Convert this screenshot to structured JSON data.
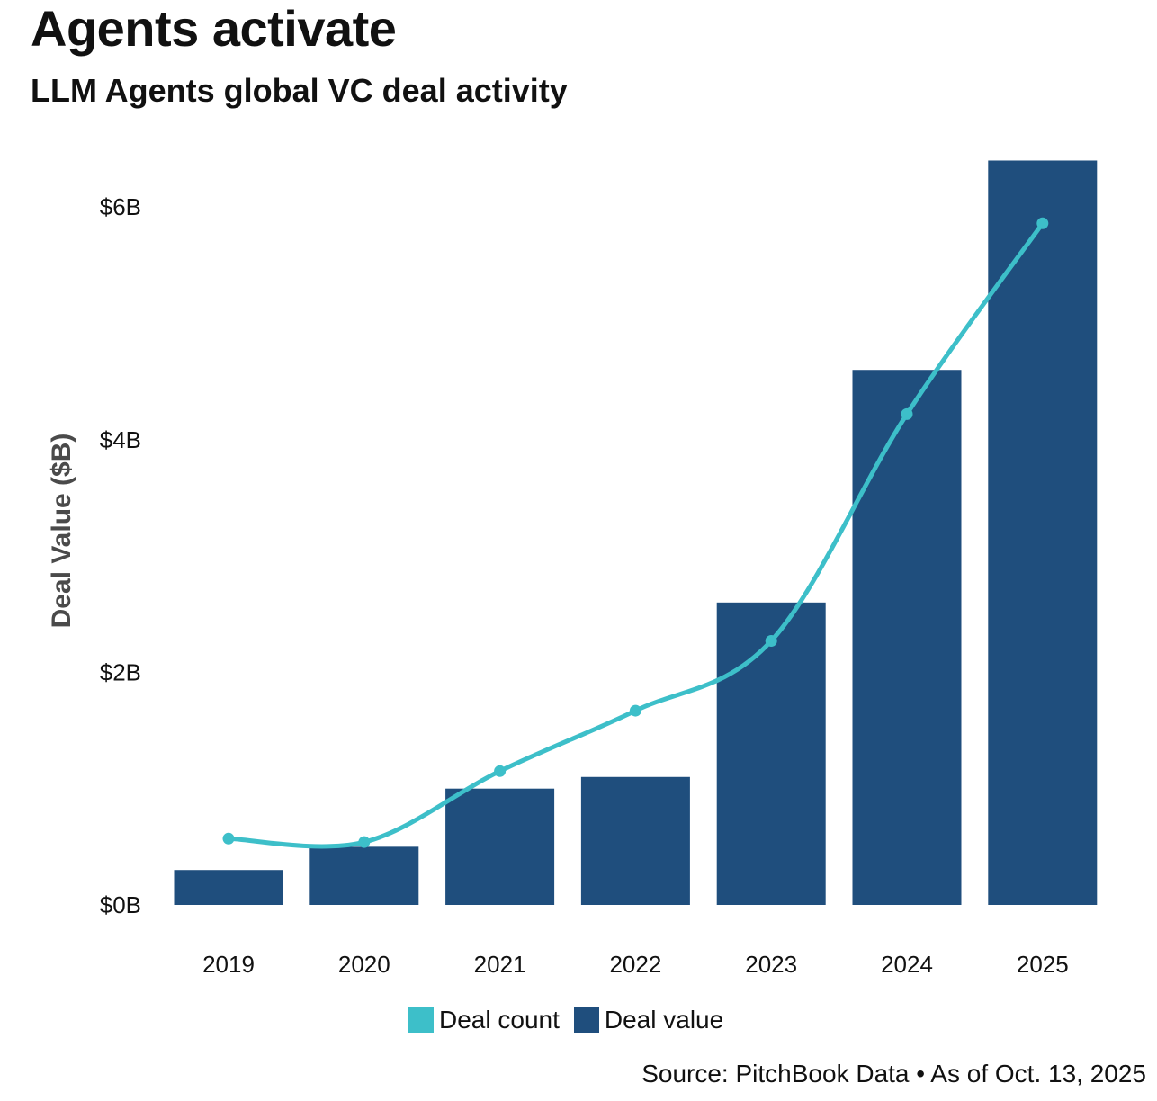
{
  "header": {
    "title": "Agents activate",
    "subtitle": "LLM Agents global VC deal activity"
  },
  "colors": {
    "bar": "#1f4e7d",
    "line": "#3dbfc9"
  },
  "chart_data": {
    "type": "bar",
    "title": "Agents activate",
    "subtitle": "LLM Agents global VC deal activity",
    "categories": [
      "2019",
      "2020",
      "2021",
      "2022",
      "2023",
      "2024",
      "2025"
    ],
    "series": [
      {
        "name": "Deal value",
        "type": "bar",
        "values": [
          0.3,
          0.5,
          1.0,
          1.1,
          2.6,
          4.6,
          6.4
        ]
      },
      {
        "name": "Deal count",
        "type": "line",
        "relative_scale": [
          0.57,
          0.54,
          1.15,
          1.67,
          2.27,
          4.22,
          5.86
        ]
      }
    ],
    "ylabel": "Deal Value ($B)",
    "xlabel": "",
    "ylim": [
      0,
      6.4
    ],
    "yticks": [
      0,
      2,
      4,
      6
    ],
    "ytick_labels": [
      "$0B",
      "$2B",
      "$4B",
      "$6B"
    ],
    "legend_position": "bottom-center",
    "grid": false
  },
  "legend": {
    "items": [
      {
        "label": "Deal count",
        "color": "#3dbfc9"
      },
      {
        "label": "Deal value",
        "color": "#1f4e7d"
      }
    ]
  },
  "footer": {
    "source": "Source: PitchBook Data • As of Oct. 13, 2025"
  }
}
